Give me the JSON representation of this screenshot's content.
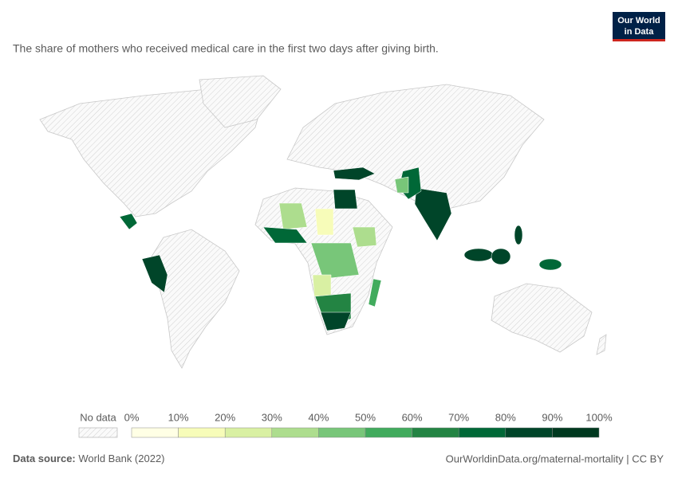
{
  "header": {
    "subtitle": "The share of mothers who received medical care in the first two days after giving birth.",
    "logo": [
      "Our World",
      "in Data"
    ]
  },
  "legend": {
    "no_data": "No data",
    "labels": [
      "0%",
      "10%",
      "20%",
      "30%",
      "40%",
      "50%",
      "60%",
      "70%",
      "80%",
      "90%",
      "100%"
    ],
    "colors": [
      "#ffffe5",
      "#f7fcb9",
      "#d9f0a3",
      "#addd8e",
      "#78c679",
      "#41ab5d",
      "#238443",
      "#006837",
      "#004529",
      "#00391f"
    ]
  },
  "footer": {
    "source_label": "Data source:",
    "source": " World Bank (2022)",
    "url": "OurWorldinData.org/maternal-mortality | CC BY"
  }
}
